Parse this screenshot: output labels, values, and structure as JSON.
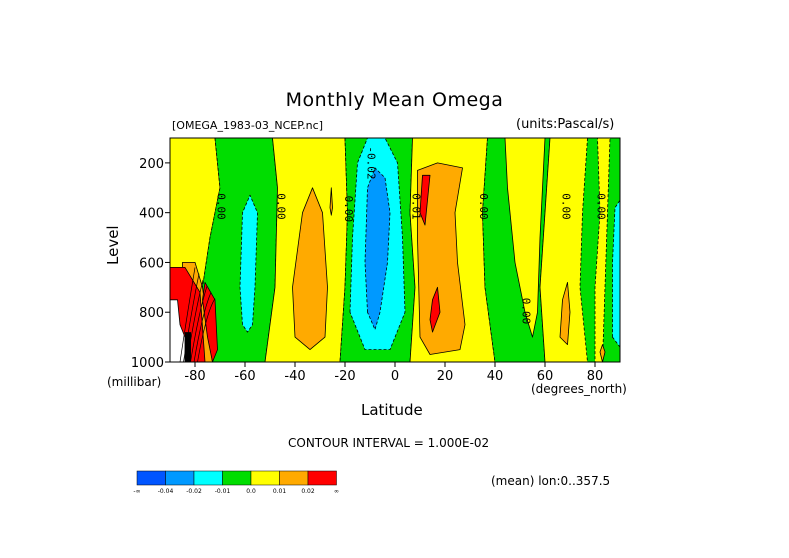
{
  "header": {
    "title": "Monthly Mean Omega",
    "dataset": "[OMEGA_1983-03_NCEP.nc]",
    "units": "(units:Pascal/s)"
  },
  "footer": {
    "contour_interval": "CONTOUR INTERVAL = 1.000E-02",
    "mean_note": "(mean) lon:0..357.5"
  },
  "colorbar": {
    "colors": [
      "#0055ff",
      "#0099ff",
      "#00ffff",
      "#00dd00",
      "#ffff00",
      "#ffaa00",
      "#ff0000"
    ],
    "labels": [
      "-∞",
      "-0.04",
      "-0.02",
      "-0.01",
      "0.0",
      "0.01",
      "0.02",
      "∞"
    ]
  },
  "chart_data": {
    "type": "heatmap",
    "title": "Monthly Mean Omega",
    "xlabel": "Latitude",
    "xunit": "(degrees_north)",
    "ylabel": "Level",
    "yunit": "(millibar)",
    "xlim": [
      -90,
      90
    ],
    "ylim": [
      1000,
      100
    ],
    "xticks": [
      -80,
      -60,
      -40,
      -20,
      0,
      20,
      40,
      60,
      80
    ],
    "xtick_labels": [
      "-80",
      "-60",
      "-40",
      "-20",
      "0",
      "20",
      "40",
      "60",
      "80"
    ],
    "yticks": [
      200,
      400,
      600,
      800,
      1000
    ],
    "ytick_labels": [
      "200",
      "400",
      "600",
      "800",
      "1000"
    ],
    "contour_labels": [
      {
        "text": "0.00",
        "lat": -71,
        "lev": 375
      },
      {
        "text": "0.00",
        "lat": -47,
        "lev": 375
      },
      {
        "text": "0.00",
        "lat": -20,
        "lev": 385
      },
      {
        "text": "-0.02",
        "lat": -11,
        "lev": 200
      },
      {
        "text": "0.01",
        "lat": 7,
        "lev": 375
      },
      {
        "text": "0.00",
        "lat": 34,
        "lev": 375
      },
      {
        "text": "0.00",
        "lat": 51,
        "lev": 795
      },
      {
        "text": "0.00",
        "lat": 67,
        "lev": 375
      },
      {
        "text": "0.00",
        "lat": 81,
        "lev": 375
      }
    ],
    "regions": [
      {
        "value": "0.0..0.01",
        "pts": [
          [
            -90,
            100
          ],
          [
            -90,
            1000
          ],
          [
            -73,
            1000
          ],
          [
            -77,
            700
          ],
          [
            -74,
            500
          ],
          [
            -70,
            300
          ],
          [
            -72,
            100
          ]
        ]
      },
      {
        "value": "-0.01..0.0",
        "pts": [
          [
            -72,
            100
          ],
          [
            -70,
            300
          ],
          [
            -74,
            500
          ],
          [
            -77,
            700
          ],
          [
            -73,
            1000
          ],
          [
            -52,
            1000
          ],
          [
            -48,
            700
          ],
          [
            -47,
            300
          ],
          [
            -49,
            100
          ]
        ]
      },
      {
        "value": "-0.02..-0.01",
        "pts": [
          [
            -61,
            850
          ],
          [
            -62,
            700
          ],
          [
            -61,
            400
          ],
          [
            -58,
            330
          ],
          [
            -55,
            400
          ],
          [
            -56,
            700
          ],
          [
            -57,
            850
          ],
          [
            -59,
            880
          ]
        ]
      },
      {
        "value": "0.0..0.01",
        "pts": [
          [
            -49,
            100
          ],
          [
            -47,
            300
          ],
          [
            -48,
            700
          ],
          [
            -52,
            1000
          ],
          [
            -22,
            1000
          ],
          [
            -20,
            700
          ],
          [
            -19,
            400
          ],
          [
            -20,
            100
          ]
        ]
      },
      {
        "value": "0.01..0.02",
        "pts": [
          [
            -40,
            900
          ],
          [
            -41,
            700
          ],
          [
            -37,
            400
          ],
          [
            -33,
            300
          ],
          [
            -29,
            400
          ],
          [
            -27,
            700
          ],
          [
            -28,
            900
          ],
          [
            -34,
            950
          ]
        ]
      },
      {
        "value": "0.01..0.02",
        "pts": [
          [
            -26,
            380
          ],
          [
            -25.5,
            300
          ],
          [
            -25,
            380
          ],
          [
            -25.5,
            410
          ]
        ]
      },
      {
        "value": "-0.01..0.0",
        "pts": [
          [
            -20,
            100
          ],
          [
            -19,
            400
          ],
          [
            -20,
            700
          ],
          [
            -22,
            1000
          ],
          [
            -8,
            1000
          ],
          [
            6,
            1000
          ],
          [
            8,
            700
          ],
          [
            6,
            400
          ],
          [
            7,
            100
          ]
        ]
      },
      {
        "value": "-0.02..-0.01",
        "pts": [
          [
            -18,
            800
          ],
          [
            -17,
            500
          ],
          [
            -15,
            200
          ],
          [
            -11,
            100
          ],
          [
            -4,
            100
          ],
          [
            1,
            200
          ],
          [
            3,
            500
          ],
          [
            4,
            800
          ],
          [
            -2,
            950
          ],
          [
            -12,
            950
          ]
        ]
      },
      {
        "value": "-0.04..-0.02",
        "pts": [
          [
            -11,
            800
          ],
          [
            -12,
            600
          ],
          [
            -11,
            300
          ],
          [
            -8,
            220
          ],
          [
            -4,
            260
          ],
          [
            -2,
            400
          ],
          [
            -3,
            600
          ],
          [
            -6,
            800
          ],
          [
            -8,
            870
          ]
        ]
      },
      {
        "value": "0.0..0.01",
        "pts": [
          [
            7,
            100
          ],
          [
            6,
            400
          ],
          [
            8,
            700
          ],
          [
            6,
            1000
          ],
          [
            40,
            1000
          ],
          [
            36,
            700
          ],
          [
            35,
            400
          ],
          [
            37,
            100
          ]
        ]
      },
      {
        "value": "0.01..0.02",
        "pts": [
          [
            10,
            900
          ],
          [
            9,
            500
          ],
          [
            9,
            230
          ],
          [
            17,
            200
          ],
          [
            27,
            220
          ],
          [
            24,
            400
          ],
          [
            25,
            600
          ],
          [
            28,
            850
          ],
          [
            26,
            950
          ],
          [
            14,
            970
          ]
        ]
      },
      {
        "value": "0.02..inf",
        "pts": [
          [
            10,
            400
          ],
          [
            11,
            250
          ],
          [
            14,
            250
          ],
          [
            13,
            350
          ],
          [
            12,
            450
          ]
        ]
      },
      {
        "value": "0.02..inf",
        "pts": [
          [
            14,
            830
          ],
          [
            15,
            750
          ],
          [
            17,
            700
          ],
          [
            18,
            800
          ],
          [
            15,
            880
          ]
        ]
      },
      {
        "value": "-0.01..0.0",
        "pts": [
          [
            37,
            100
          ],
          [
            35,
            400
          ],
          [
            36,
            700
          ],
          [
            40,
            1000
          ],
          [
            60,
            1000
          ],
          [
            58,
            700
          ],
          [
            60,
            400
          ],
          [
            62,
            100
          ]
        ]
      },
      {
        "value": "0.0..0.01",
        "pts": [
          [
            44,
            100
          ],
          [
            45,
            300
          ],
          [
            48,
            600
          ],
          [
            52,
            800
          ],
          [
            55,
            900
          ],
          [
            57,
            800
          ],
          [
            58,
            500
          ],
          [
            60,
            100
          ]
        ]
      },
      {
        "value": "0.0..0.01",
        "pts": [
          [
            62,
            100
          ],
          [
            60,
            400
          ],
          [
            58,
            700
          ],
          [
            60,
            1000
          ],
          [
            90,
            1000
          ],
          [
            90,
            100
          ]
        ]
      },
      {
        "value": "0.01..0.02",
        "pts": [
          [
            66,
            900
          ],
          [
            67,
            750
          ],
          [
            69,
            680
          ],
          [
            70,
            800
          ],
          [
            69,
            930
          ]
        ]
      },
      {
        "value": "-0.01..0.0",
        "pts": [
          [
            77,
            100
          ],
          [
            75,
            400
          ],
          [
            74,
            700
          ],
          [
            77,
            1000
          ],
          [
            80,
            1000
          ],
          [
            80,
            700
          ],
          [
            82,
            400
          ],
          [
            81,
            100
          ]
        ]
      },
      {
        "value": "-0.01..0.0",
        "pts": [
          [
            83,
            1000
          ],
          [
            84,
            700
          ],
          [
            85,
            400
          ],
          [
            86,
            100
          ],
          [
            90,
            100
          ],
          [
            90,
            1000
          ]
        ]
      },
      {
        "value": "-0.02..-0.01",
        "pts": [
          [
            87,
            900
          ],
          [
            87,
            600
          ],
          [
            88,
            380
          ],
          [
            90,
            350
          ],
          [
            90,
            940
          ]
        ]
      },
      {
        "value": "0.01..0.02",
        "pts": [
          [
            82,
            960
          ],
          [
            83,
            930
          ],
          [
            84,
            960
          ],
          [
            83,
            1000
          ]
        ]
      },
      {
        "value": "0.01..0.02",
        "pts": [
          [
            -85,
            600
          ],
          [
            -80,
            600
          ],
          [
            -77,
            700
          ],
          [
            -73,
            1000
          ],
          [
            -85,
            1000
          ]
        ]
      },
      {
        "value": "0.02..inf",
        "pts": [
          [
            -90,
            620
          ],
          [
            -84,
            620
          ],
          [
            -78,
            720
          ],
          [
            -76,
            1000
          ],
          [
            -90,
            1000
          ]
        ]
      },
      {
        "value": "0.02..inf",
        "pts": [
          [
            -75,
            900
          ],
          [
            -77,
            750
          ],
          [
            -76,
            680
          ],
          [
            -72,
            750
          ],
          [
            -71,
            950
          ],
          [
            -73,
            1000
          ]
        ]
      },
      {
        "value": "missing",
        "pts": [
          [
            -90,
            750
          ],
          [
            -87,
            750
          ],
          [
            -86,
            850
          ],
          [
            -84,
            900
          ],
          [
            -84,
            1000
          ],
          [
            -90,
            1000
          ]
        ]
      }
    ]
  }
}
